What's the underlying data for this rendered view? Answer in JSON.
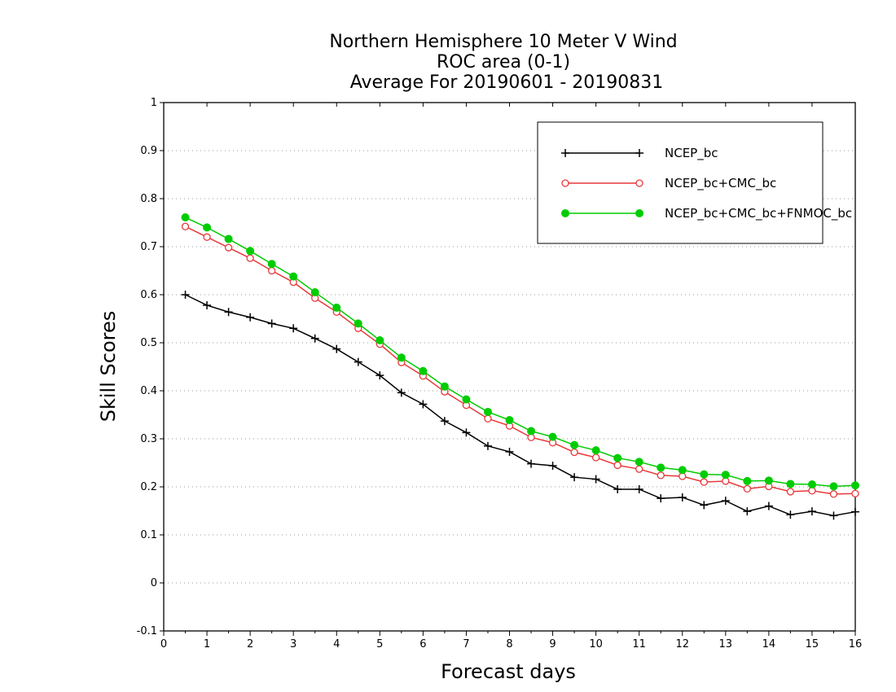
{
  "chart_data": {
    "type": "line",
    "title": "Northern Hemisphere 10 Meter V Wind",
    "subtitle": "ROC area (0-1)",
    "subtitle2": "Average For 20190601 - 20190831",
    "xlabel": "Forecast days",
    "ylabel": "Skill Scores",
    "xlim": [
      0,
      16
    ],
    "ylim": [
      -0.1,
      1
    ],
    "x_ticks": [
      "0",
      "1",
      "2",
      "3",
      "4",
      "5",
      "6",
      "7",
      "8",
      "9",
      "10",
      "11",
      "12",
      "13",
      "14",
      "15",
      "16"
    ],
    "y_ticks": [
      "1",
      "0.9",
      "0.8",
      "0.7",
      "0.6",
      "0.5",
      "0.4",
      "0.3",
      "0.2",
      "0.1",
      "0",
      "-0.1"
    ],
    "grid": true,
    "legend_position": "top-right",
    "x": [
      0.5,
      1,
      1.5,
      2,
      2.5,
      3,
      3.5,
      4,
      4.5,
      5,
      5.5,
      6,
      6.5,
      7,
      7.5,
      8,
      8.5,
      9,
      9.5,
      10,
      10.5,
      11,
      11.5,
      12,
      12.5,
      13,
      13.5,
      14,
      14.5,
      15,
      15.5,
      16
    ],
    "series": [
      {
        "name": "NCEP_bc",
        "color": "#000000",
        "marker": "plus",
        "values": [
          0.6,
          0.578,
          0.564,
          0.553,
          0.54,
          0.53,
          0.509,
          0.487,
          0.46,
          0.432,
          0.396,
          0.372,
          0.337,
          0.313,
          0.285,
          0.273,
          0.248,
          0.244,
          0.22,
          0.216,
          0.195,
          0.195,
          0.176,
          0.178,
          0.162,
          0.171,
          0.149,
          0.16,
          0.142,
          0.149,
          0.14,
          0.148
        ]
      },
      {
        "name": "NCEP_bc+CMC_bc",
        "color": "#e8383a",
        "marker": "open-circle",
        "values": [
          0.742,
          0.72,
          0.698,
          0.676,
          0.65,
          0.626,
          0.593,
          0.564,
          0.53,
          0.497,
          0.459,
          0.431,
          0.398,
          0.37,
          0.342,
          0.327,
          0.303,
          0.292,
          0.272,
          0.261,
          0.245,
          0.237,
          0.224,
          0.222,
          0.21,
          0.212,
          0.196,
          0.201,
          0.19,
          0.192,
          0.185,
          0.186
        ]
      },
      {
        "name": "NCEP_bc+CMC_bc+FNMOC_bc",
        "color": "#00cc00",
        "marker": "filled-circle",
        "values": [
          0.761,
          0.74,
          0.716,
          0.691,
          0.664,
          0.638,
          0.605,
          0.573,
          0.54,
          0.505,
          0.469,
          0.441,
          0.409,
          0.382,
          0.356,
          0.339,
          0.316,
          0.304,
          0.287,
          0.276,
          0.26,
          0.252,
          0.24,
          0.235,
          0.226,
          0.225,
          0.212,
          0.213,
          0.206,
          0.205,
          0.201,
          0.203
        ]
      }
    ]
  }
}
